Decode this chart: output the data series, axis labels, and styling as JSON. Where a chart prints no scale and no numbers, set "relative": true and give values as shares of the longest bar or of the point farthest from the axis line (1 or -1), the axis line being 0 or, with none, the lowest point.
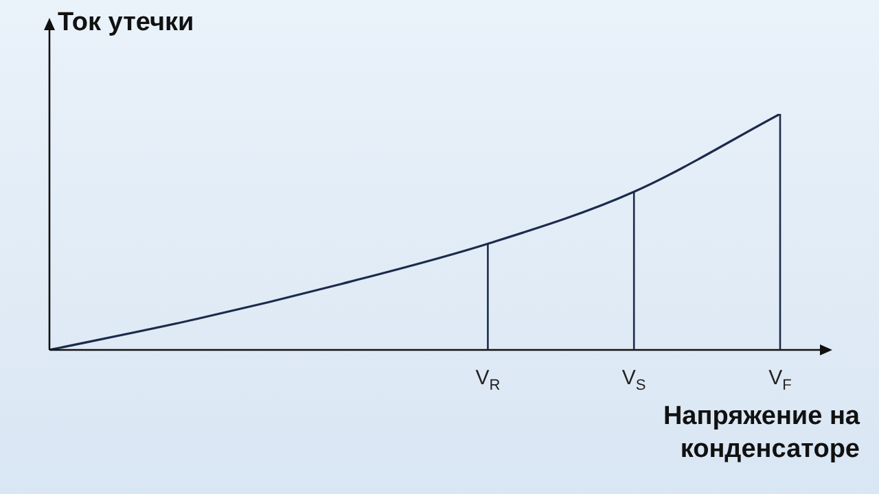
{
  "chart_data": {
    "type": "line",
    "relative": true,
    "ylabel": "Ток утечки",
    "xlabel": "Напряжение на конденсаторе",
    "categories": [
      null,
      null,
      null,
      "V$_{R}$",
      "V$_{S}$",
      "V$_{F}$"
    ],
    "color": "#1c2b4a",
    "values": [
      0,
      0.13,
      0.28,
      0.45,
      0.67,
      1
    ],
    "ref_lines": [
      {
        "axis": "x",
        "value": "V$_{R}$"
      },
      {
        "axis": "x",
        "value": "V$_{S}$"
      },
      {
        "axis": "x",
        "value": "V$_{F}$"
      }
    ]
  }
}
